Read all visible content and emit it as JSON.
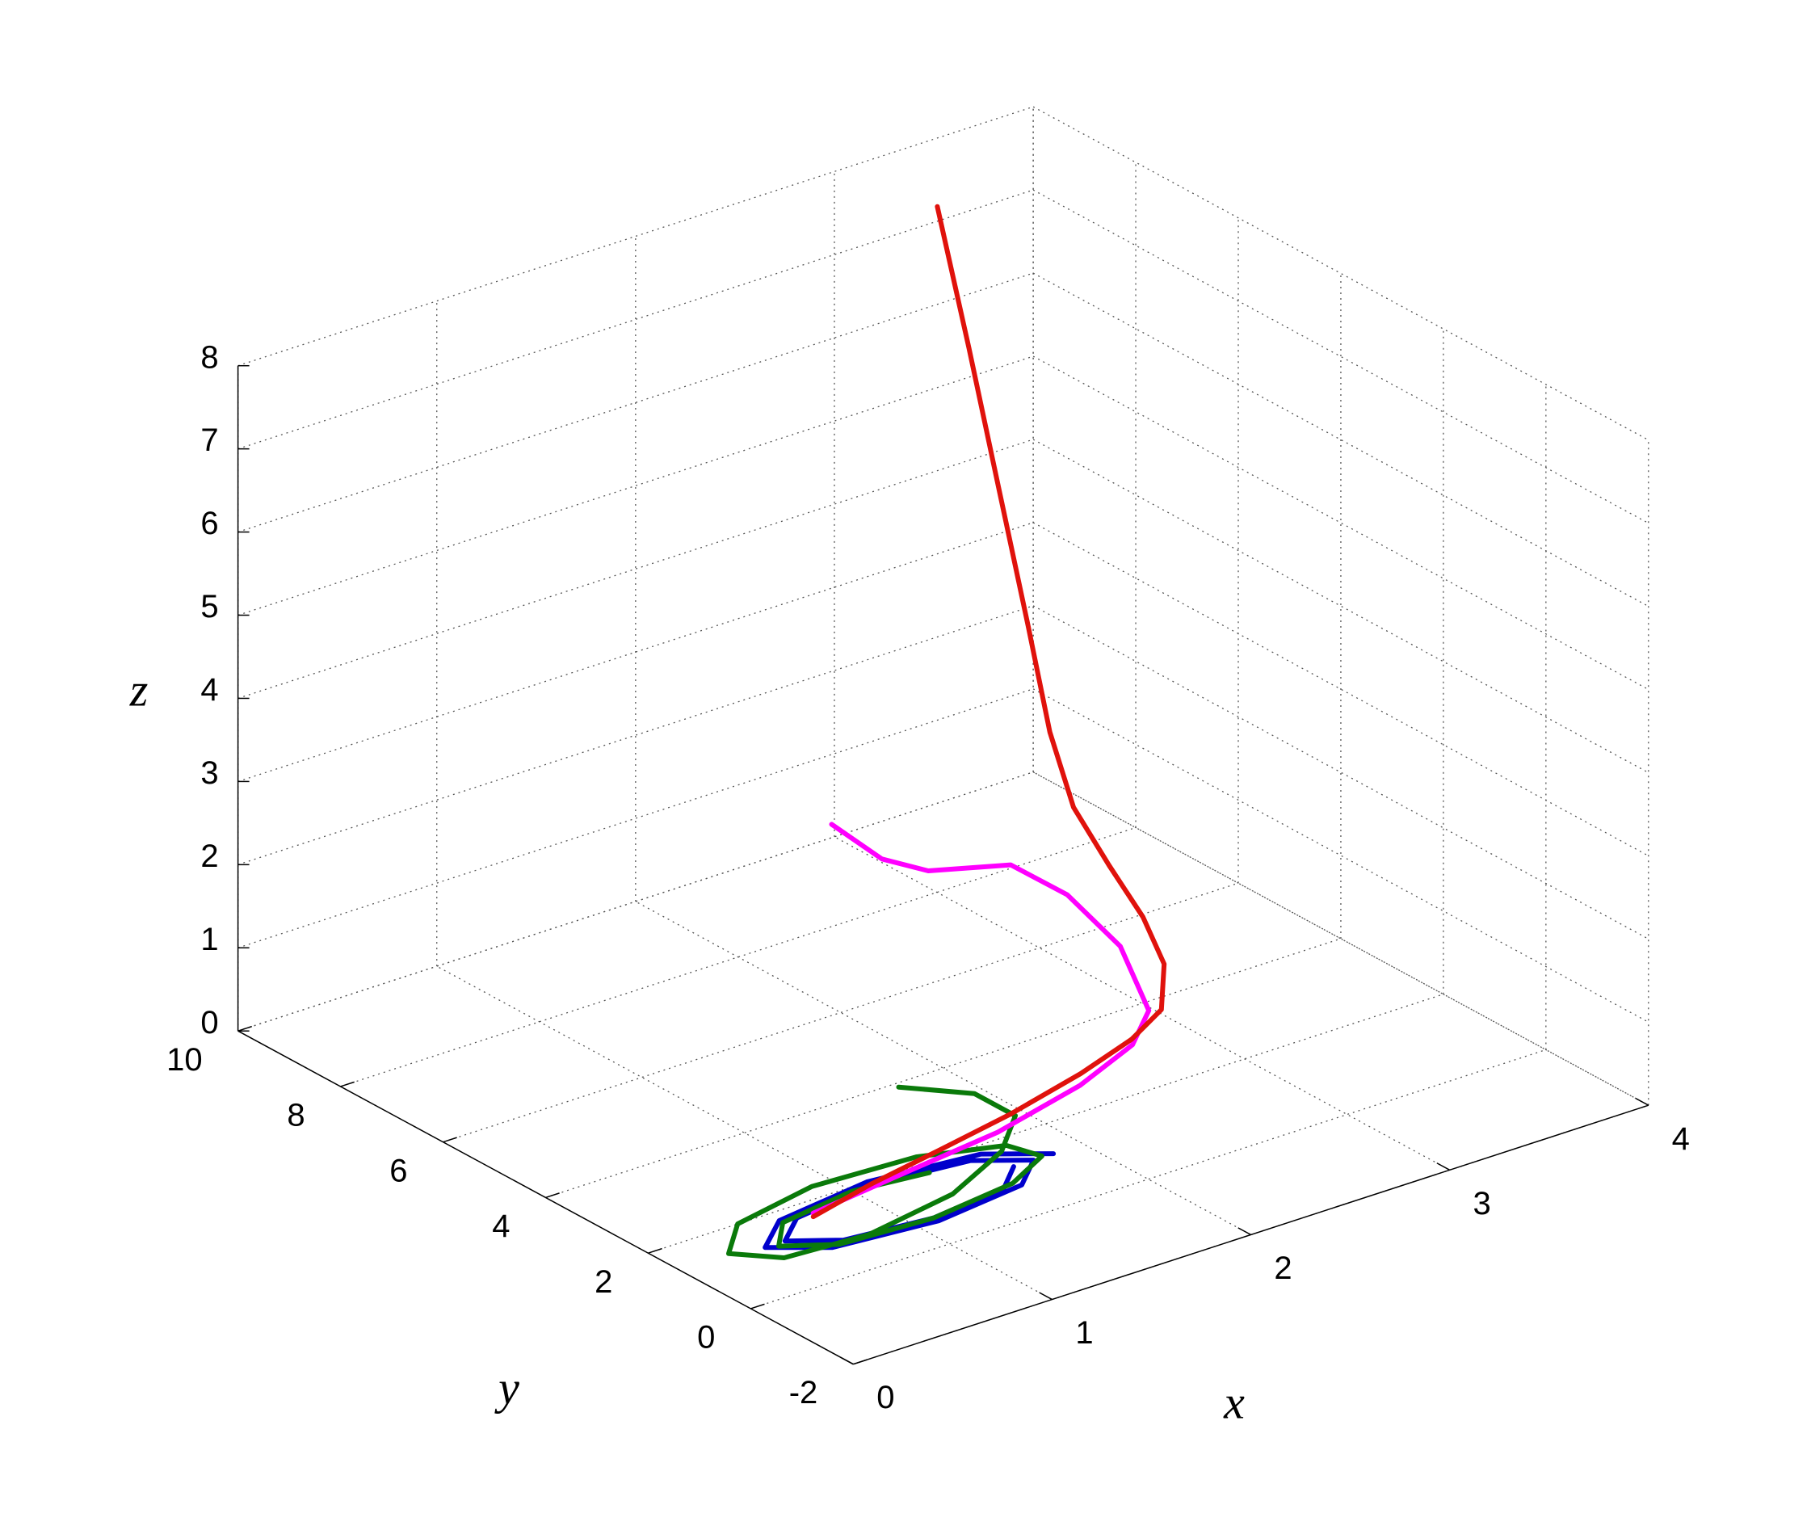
{
  "chart_data": {
    "type": "line3d",
    "x_label": "x",
    "y_label": "y",
    "z_label": "z",
    "xlim": [
      0,
      4
    ],
    "ylim": [
      -2,
      10
    ],
    "zlim": [
      0,
      8
    ],
    "xticks": [
      0,
      1,
      2,
      3,
      4
    ],
    "yticks": [
      -2,
      0,
      2,
      4,
      6,
      8,
      10
    ],
    "zticks": [
      0,
      1,
      2,
      3,
      4,
      5,
      6,
      7,
      8
    ],
    "grid": true,
    "series": [
      {
        "color": "#0000cc",
        "x": [
          1.85,
          1.62,
          1.1,
          0.6,
          0.4,
          0.61,
          1.1,
          1.57,
          1.75,
          1.55,
          1.1,
          0.67,
          0.5,
          0.69,
          1.1,
          1.5,
          1.65
        ],
        "y": [
          1.27,
          1.79,
          2.0,
          1.77,
          1.27,
          0.78,
          0.6,
          0.8,
          1.27,
          1.72,
          1.9,
          1.7,
          1.27,
          0.86,
          0.7,
          0.87,
          1.27
        ],
        "z": [
          0,
          0,
          0,
          0,
          0,
          0,
          0,
          0,
          0,
          0,
          0,
          0,
          0,
          0,
          0,
          0,
          0
        ]
      },
      {
        "color": "#0a7a0a",
        "x": [
          1.75,
          1.95,
          1.95,
          1.7,
          1.3,
          0.8,
          0.4,
          0.25,
          0.45,
          0.9,
          1.4,
          1.75,
          1.8,
          1.55,
          1.1,
          0.65,
          0.45,
          0.6,
          1.0,
          1.35
        ],
        "y": [
          3.9,
          3.2,
          2.4,
          1.7,
          1.1,
          0.8,
          0.9,
          1.4,
          2.0,
          2.3,
          2.2,
          1.8,
          1.3,
          0.9,
          0.7,
          0.8,
          1.2,
          1.7,
          1.9,
          1.75
        ],
        "z": [
          0,
          0,
          0,
          0,
          0,
          0,
          0,
          0,
          0,
          0,
          0,
          0,
          0,
          0,
          0,
          0,
          0,
          0,
          0,
          0
        ]
      },
      {
        "color": "#ff00ff",
        "x": [
          2.47,
          2.62,
          2.75,
          3.01,
          3.14,
          3.2,
          2.98,
          2.73,
          2.33,
          1.8,
          1.28,
          0.75
        ],
        "y": [
          8.0,
          7.6,
          7.2,
          6.6,
          6.0,
          5.2,
          3.79,
          3.14,
          2.61,
          2.16,
          1.93,
          1.69
        ],
        "z": [
          1.23,
          0.83,
          0.72,
          0.79,
          0.53,
          0.13,
          0,
          0,
          0,
          0,
          0,
          0
        ]
      },
      {
        "color": "#e0120c",
        "x": [
          3.26,
          3.29,
          3.31,
          3.33,
          3.31,
          3.3,
          3.35,
          3.34,
          3.24,
          3.02,
          2.76,
          2.4,
          1.94,
          1.52,
          1.1,
          0.73
        ],
        "y": [
          9.0,
          8.5,
          8.0,
          7.5,
          7.0,
          6.5,
          6.0,
          5.3,
          4.5,
          3.7,
          3.27,
          2.87,
          2.47,
          2.19,
          1.92,
          1.61
        ],
        "z": [
          7.71,
          6.15,
          4.63,
          3.11,
          2.02,
          1.29,
          0.72,
          0.34,
          0.12,
          0.01,
          0,
          0,
          0,
          0,
          0,
          0
        ]
      }
    ]
  }
}
